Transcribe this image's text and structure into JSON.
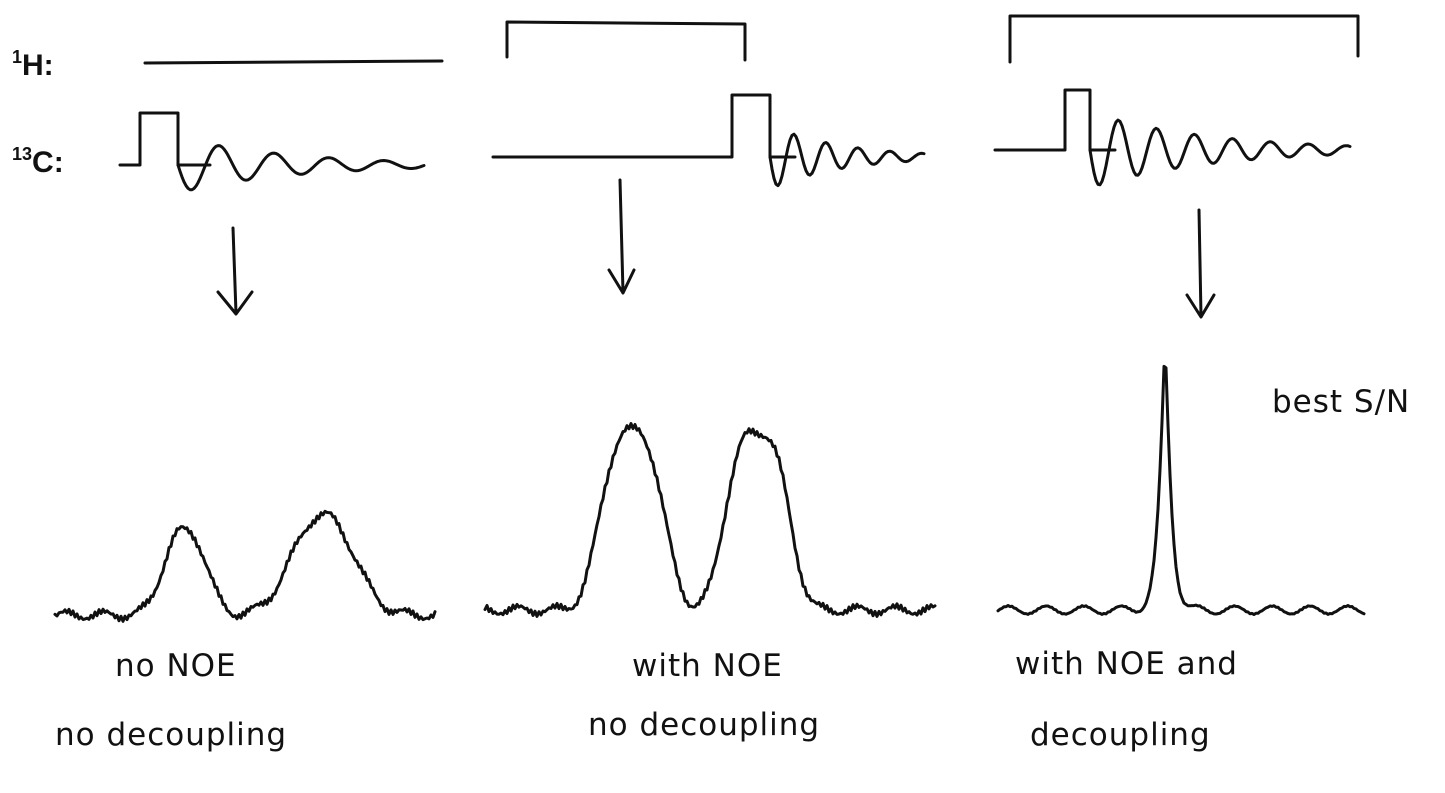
{
  "channels": [
    {
      "superscript": "1",
      "text": "H:"
    },
    {
      "superscript": "13",
      "text": "C:"
    }
  ],
  "panels": [
    {
      "caption": [
        "no NOE",
        "no decoupling"
      ]
    },
    {
      "caption": [
        "with NOE",
        "no decoupling"
      ]
    },
    {
      "caption": [
        "with NOE and",
        "decoupling"
      ],
      "note": "best S/N"
    }
  ]
}
